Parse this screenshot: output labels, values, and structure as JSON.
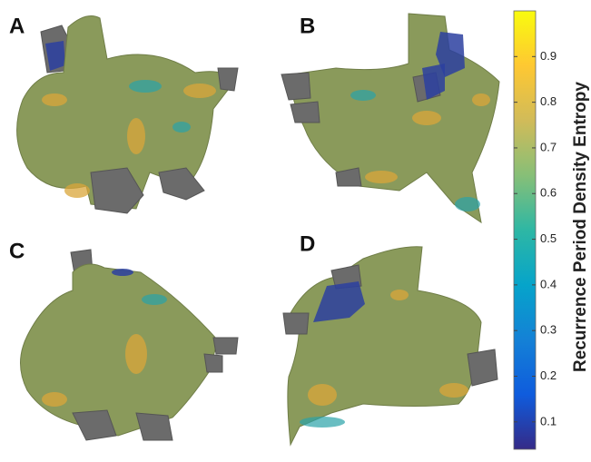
{
  "chart_data": {
    "type": "colorbar",
    "panels": [
      "A",
      "B",
      "C",
      "D"
    ],
    "colorbar_label": "Recurrence Period Density Entropy",
    "ylim": [
      0.04,
      1.0
    ],
    "yticks": [
      0.1,
      0.2,
      0.3,
      0.4,
      0.5,
      0.6,
      0.7,
      0.8,
      0.9
    ],
    "colors": [
      "#352a87",
      "#0f5cdd",
      "#1481d6",
      "#06a4ca",
      "#2eb7a4",
      "#87bf77",
      "#d1bb59",
      "#fec832",
      "#f9fb0e"
    ]
  }
}
